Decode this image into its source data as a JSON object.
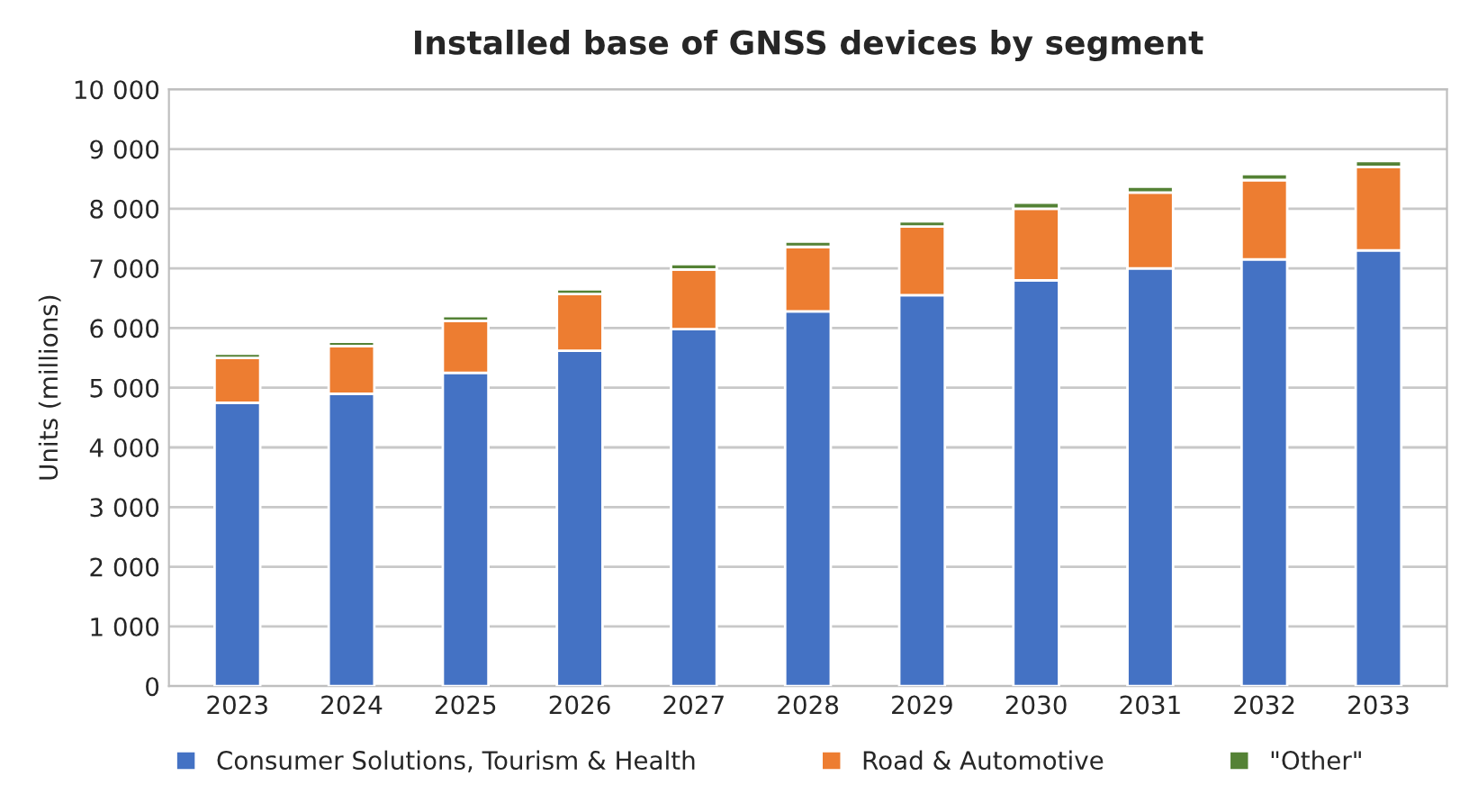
{
  "chart_data": {
    "type": "bar",
    "title": "Installed base of GNSS devices by segment",
    "ylabel": "Units (millions)",
    "categories": [
      "2023",
      "2024",
      "2025",
      "2026",
      "2027",
      "2028",
      "2029",
      "2030",
      "2031",
      "2032",
      "2033"
    ],
    "stacked": true,
    "series": [
      {
        "name": "Consumer Solutions, Tourism & Health",
        "color": "#4472c4",
        "values": [
          4750,
          4900,
          5250,
          5620,
          5980,
          6280,
          6550,
          6800,
          7000,
          7150,
          7300
        ]
      },
      {
        "name": "Road & Automotive",
        "color": "#ed7d31",
        "values": [
          750,
          800,
          870,
          950,
          1000,
          1080,
          1150,
          1200,
          1270,
          1330,
          1400
        ]
      },
      {
        "name": "\"Other\"",
        "color": "#548235",
        "values": [
          70,
          70,
          80,
          80,
          90,
          90,
          90,
          100,
          100,
          100,
          100
        ]
      }
    ],
    "ylim": [
      0,
      10000
    ],
    "yticks": [
      {
        "value": 0,
        "label": "0"
      },
      {
        "value": 1000,
        "label": "1 000"
      },
      {
        "value": 2000,
        "label": "2 000"
      },
      {
        "value": 3000,
        "label": "3 000"
      },
      {
        "value": 4000,
        "label": "4 000"
      },
      {
        "value": 5000,
        "label": "5 000"
      },
      {
        "value": 6000,
        "label": "6 000"
      },
      {
        "value": 7000,
        "label": "7 000"
      },
      {
        "value": 8000,
        "label": "8 000"
      },
      {
        "value": 9000,
        "label": "9 000"
      },
      {
        "value": 10000,
        "label": "10 000"
      }
    ],
    "grid": "y",
    "legend": "bottom"
  }
}
